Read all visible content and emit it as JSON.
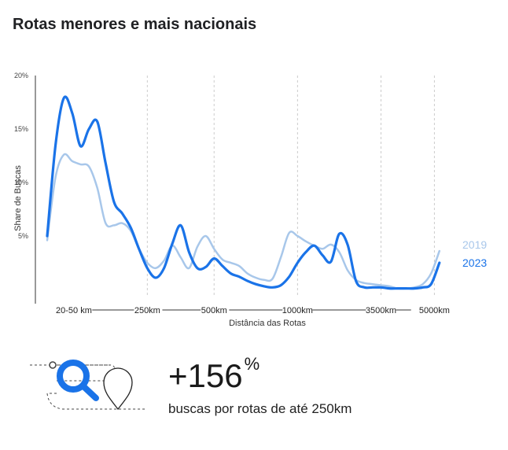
{
  "title": "Rotas menores e mais nacionais",
  "stat": {
    "value": "+156",
    "suffix": "%",
    "caption": "buscas por rotas de até 250km"
  },
  "colors": {
    "series_2019": "#a8c7ea",
    "series_2023": "#1a73e8",
    "grid": "#cccccc",
    "illustration_blue": "#1a73e8"
  },
  "icons": [
    "search-icon",
    "map-pin-icon"
  ],
  "chart_data": {
    "type": "line",
    "title": "",
    "xlabel": "Distância das Rotas",
    "ylabel": "Share de Buscas",
    "ylim": [
      0,
      20
    ],
    "yticks": [
      "5%",
      "10%",
      "15%",
      "20%"
    ],
    "ytick_values": [
      5,
      10,
      15,
      20
    ],
    "grid": "vertical dashed",
    "legend_position": "right",
    "x_tick_labels": [
      "20-50 km",
      "250km",
      "500km",
      "1000km",
      "3500km",
      "5000km"
    ],
    "x_tick_positions": [
      1.6,
      6,
      10,
      15,
      20,
      23.2
    ],
    "x": [
      0,
      0.5,
      1,
      1.5,
      2,
      2.5,
      3,
      3.5,
      4,
      4.5,
      5,
      5.5,
      6,
      6.5,
      7,
      7.5,
      8,
      8.5,
      9,
      9.5,
      10,
      10.5,
      11,
      11.5,
      12,
      12.5,
      13,
      13.5,
      14,
      14.5,
      15,
      15.5,
      16,
      16.5,
      17,
      17.5,
      18,
      18.5,
      19,
      19.5,
      20,
      20.5,
      21,
      21.5,
      22,
      22.5,
      23,
      23.5,
      24,
      24.5
    ],
    "series": [
      {
        "name": "2019",
        "values": [
          4.6,
          10.5,
          12.6,
          12.0,
          11.7,
          11.5,
          9.5,
          6.2,
          6.0,
          6.2,
          5.5,
          3.8,
          2.5,
          2.0,
          2.7,
          4.1,
          3.0,
          2.0,
          4.0,
          5.0,
          3.8,
          2.8,
          2.5,
          2.2,
          1.5,
          1.1,
          0.9,
          1.0,
          3.0,
          5.3,
          5.0,
          4.5,
          4.1,
          3.8,
          4.2,
          3.5,
          1.8,
          0.9,
          0.6,
          0.5,
          0.4,
          0.3,
          0.1,
          0.1,
          0.2,
          0.5,
          1.5,
          3.6,
          3.6,
          3.6
        ]
      },
      {
        "name": "2023",
        "values": [
          5.0,
          13.5,
          17.9,
          16.5,
          13.4,
          15.0,
          15.7,
          11.8,
          8.2,
          7.1,
          5.8,
          3.8,
          2.0,
          1.1,
          2.0,
          4.3,
          6.0,
          3.5,
          2.0,
          2.1,
          2.9,
          2.2,
          1.5,
          1.2,
          0.8,
          0.5,
          0.3,
          0.2,
          0.4,
          1.2,
          2.5,
          3.5,
          4.1,
          3.2,
          2.6,
          5.2,
          4.2,
          0.8,
          0.2,
          0.2,
          0.2,
          0.1,
          0.1,
          0.1,
          0.1,
          0.2,
          0.5,
          2.5,
          2.5,
          2.5
        ]
      }
    ]
  }
}
